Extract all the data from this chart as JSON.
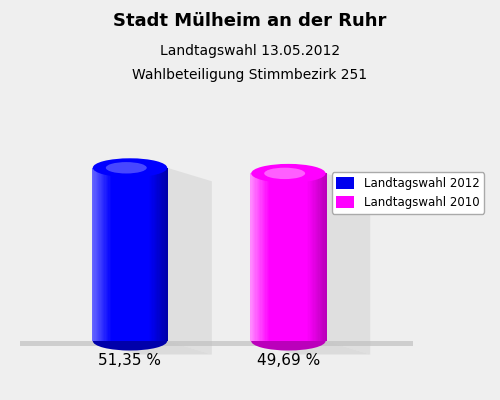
{
  "title": "Stadt Mülheim an der Ruhr",
  "subtitle1": "Landtagswahl 13.05.2012",
  "subtitle2": "Wahlbeteiligung Stimmbezirk 251",
  "values": [
    51.35,
    49.69
  ],
  "labels": [
    "51,35 %",
    "49,69 %"
  ],
  "bar_colors_main": [
    "#0000ff",
    "#ff00ff"
  ],
  "bar_colors_dark": [
    "#0000aa",
    "#bb00bb"
  ],
  "bar_colors_light": [
    "#6666ff",
    "#ff88ff"
  ],
  "background_color": "#efefef",
  "legend_labels": [
    "Landtagswahl 2012",
    "Landtagswahl 2010"
  ],
  "legend_colors": [
    "#0000ee",
    "#ff00ff"
  ],
  "platform_color": "#c0c0c0",
  "shadow_color": "#c8c8c8",
  "label_fontsize": 11,
  "title_fontsize": 13,
  "subtitle_fontsize": 10
}
